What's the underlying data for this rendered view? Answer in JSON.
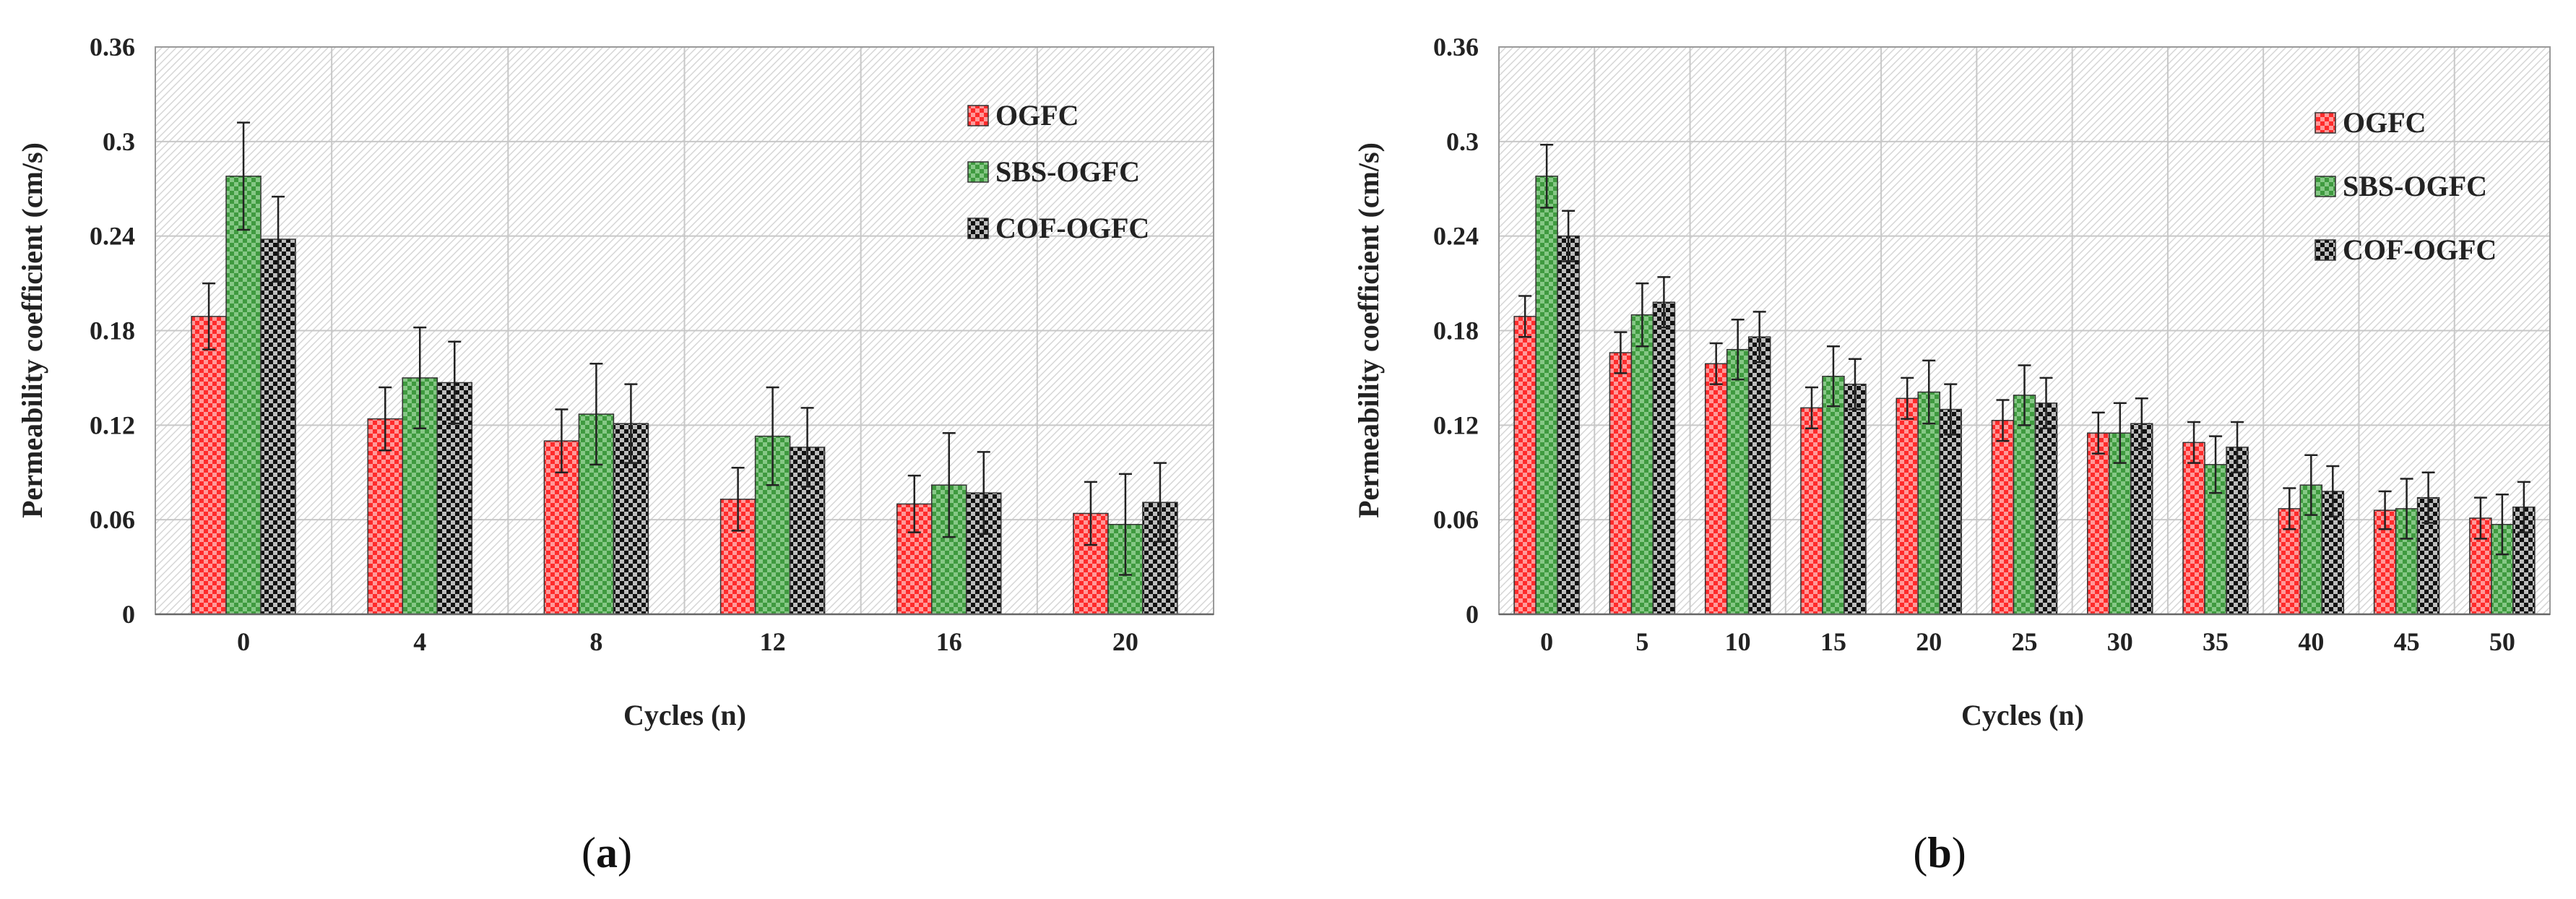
{
  "colors": {
    "OGFC": "#ff2b2b",
    "SBS-OGFC": "#3f9a3f",
    "COF-OGFC": "#111111",
    "grid": "#c8c8c8"
  },
  "chart_data": [
    {
      "id": "a",
      "panel_label": "a",
      "type": "bar",
      "xlabel": "Cycles (n)",
      "ylabel": "Permeability coefficient (cm/s)",
      "ylim": [
        0,
        0.36
      ],
      "yticks": [
        "0",
        "0.06",
        "0.12",
        "0.18",
        "0.24",
        "0.3",
        "0.36"
      ],
      "categories": [
        "0",
        "4",
        "8",
        "12",
        "16",
        "20"
      ],
      "legend_position": "top-right",
      "series": [
        {
          "name": "OGFC",
          "values": [
            0.189,
            0.124,
            0.11,
            0.073,
            0.07,
            0.064
          ],
          "errors": [
            0.021,
            0.02,
            0.02,
            0.02,
            0.018,
            0.02
          ]
        },
        {
          "name": "SBS-OGFC",
          "values": [
            0.278,
            0.15,
            0.127,
            0.113,
            0.082,
            0.057
          ],
          "errors": [
            0.034,
            0.032,
            0.032,
            0.031,
            0.033,
            0.032
          ]
        },
        {
          "name": "COF-OGFC",
          "values": [
            0.238,
            0.147,
            0.121,
            0.106,
            0.077,
            0.071
          ],
          "errors": [
            0.027,
            0.026,
            0.025,
            0.025,
            0.026,
            0.025
          ]
        }
      ]
    },
    {
      "id": "b",
      "panel_label": "b",
      "type": "bar",
      "xlabel": "Cycles (n)",
      "ylabel": "Permeability coefficient (cm/s)",
      "ylim": [
        0,
        0.36
      ],
      "yticks": [
        "0",
        "0.06",
        "0.12",
        "0.18",
        "0.24",
        "0.3",
        "0.36"
      ],
      "categories": [
        "0",
        "5",
        "10",
        "15",
        "20",
        "25",
        "30",
        "35",
        "40",
        "45",
        "50"
      ],
      "legend_position": "top-right",
      "series": [
        {
          "name": "OGFC",
          "values": [
            0.189,
            0.166,
            0.159,
            0.131,
            0.137,
            0.123,
            0.115,
            0.109,
            0.067,
            0.066,
            0.061
          ],
          "errors": [
            0.013,
            0.013,
            0.013,
            0.013,
            0.013,
            0.013,
            0.013,
            0.013,
            0.013,
            0.012,
            0.013
          ]
        },
        {
          "name": "SBS-OGFC",
          "values": [
            0.278,
            0.19,
            0.168,
            0.151,
            0.141,
            0.139,
            0.115,
            0.095,
            0.082,
            0.067,
            0.057
          ],
          "errors": [
            0.02,
            0.02,
            0.019,
            0.019,
            0.02,
            0.019,
            0.019,
            0.018,
            0.019,
            0.019,
            0.019
          ]
        },
        {
          "name": "COF-OGFC",
          "values": [
            0.24,
            0.198,
            0.176,
            0.146,
            0.13,
            0.134,
            0.121,
            0.106,
            0.078,
            0.074,
            0.068
          ],
          "errors": [
            0.016,
            0.016,
            0.016,
            0.016,
            0.016,
            0.016,
            0.016,
            0.016,
            0.016,
            0.016,
            0.016
          ]
        }
      ]
    }
  ]
}
